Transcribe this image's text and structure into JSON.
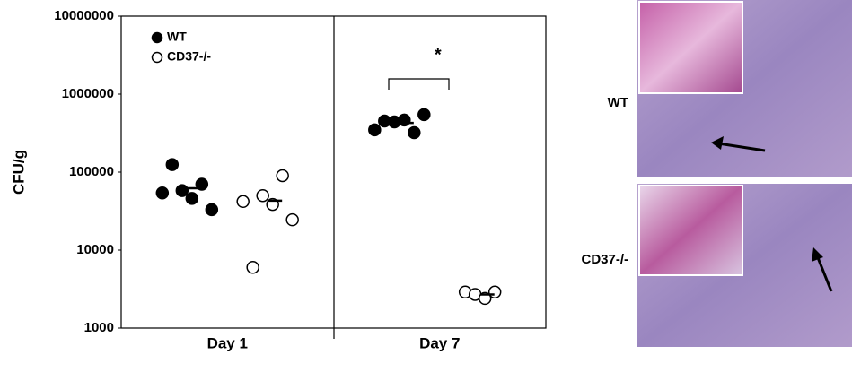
{
  "chart_data": {
    "type": "scatter",
    "ylabel": "CFU/g",
    "categories": [
      "Day 1",
      "Day 7"
    ],
    "yscale": "log",
    "ylim": [
      1000,
      10000000
    ],
    "yticks": [
      1000,
      10000,
      100000,
      1000000,
      10000000
    ],
    "legend": "upper left",
    "series": [
      {
        "name": "WT",
        "color": "#000000",
        "marker": "filled",
        "x": [
          "Day 1",
          "Day 1",
          "Day 1",
          "Day 1",
          "Day 1",
          "Day 1",
          "Day 7",
          "Day 7",
          "Day 7",
          "Day 7",
          "Day 7",
          "Day 7"
        ],
        "values": [
          54000,
          125000,
          58000,
          46000,
          70000,
          33000,
          348000,
          452000,
          440000,
          465000,
          320000,
          545000
        ],
        "medians": [
          62000,
          428000
        ]
      },
      {
        "name": "CD37-/-",
        "color": "#000000",
        "marker": "open",
        "x": [
          "Day 1",
          "Day 1",
          "Day 1",
          "Day 1",
          "Day 1",
          "Day 1",
          "Day 7",
          "Day 7",
          "Day 7",
          "Day 7"
        ],
        "values": [
          42000,
          6000,
          50000,
          38500,
          90000,
          24500,
          2900,
          2700,
          2400,
          2900
        ],
        "medians": [
          43000,
          2700
        ]
      }
    ],
    "annotations": [
      {
        "text": "*",
        "category": "Day 7"
      }
    ]
  },
  "micrographs": [
    {
      "label": "WT"
    },
    {
      "label": "CD37-/-"
    }
  ]
}
